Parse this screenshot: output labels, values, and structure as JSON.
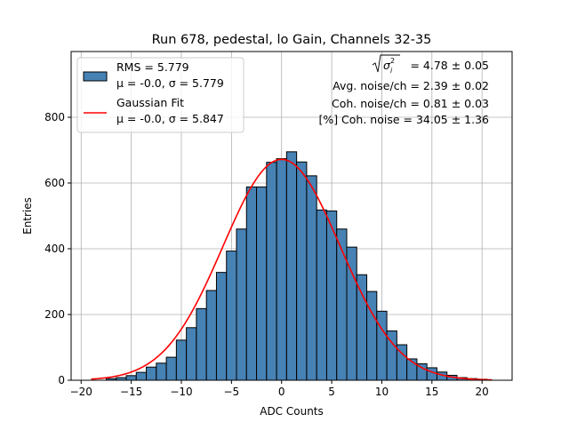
{
  "chart_data": {
    "type": "bar",
    "title": "Run 678, pedestal, lo Gain, Channels 32-35",
    "xlabel": "ADC Counts",
    "ylabel": "Entries",
    "xlim": [
      -21,
      23
    ],
    "ylim": [
      0,
      1000
    ],
    "x_ticks": [
      -20,
      -15,
      -10,
      -5,
      0,
      5,
      10,
      15,
      20
    ],
    "x_tick_labels": [
      "−20",
      "−15",
      "−10",
      "−5",
      "0",
      "5",
      "10",
      "15",
      "20"
    ],
    "y_ticks": [
      0,
      200,
      400,
      600,
      800
    ],
    "y_tick_labels": [
      "0",
      "200",
      "400",
      "600",
      "800"
    ],
    "grid": true,
    "legend_position": "top-left",
    "bin_width": 1,
    "bin_centers": [
      -17,
      -16,
      -15,
      -14,
      -13,
      -12,
      -11,
      -10,
      -9,
      -8,
      -7,
      -6,
      -5,
      -4,
      -3,
      -2,
      -1,
      0,
      1,
      2,
      3,
      4,
      5,
      6,
      7,
      8,
      9,
      10,
      11,
      12,
      13,
      14,
      15,
      16,
      17,
      18,
      19,
      20
    ],
    "counts": [
      5,
      8,
      14,
      24,
      40,
      52,
      70,
      122,
      160,
      218,
      273,
      328,
      393,
      460,
      588,
      588,
      663,
      674,
      695,
      664,
      622,
      518,
      515,
      460,
      405,
      321,
      270,
      210,
      150,
      108,
      65,
      50,
      38,
      25,
      15,
      8,
      5,
      3
    ],
    "series": [
      {
        "name": "RMS = 5.779",
        "kind": "histogram",
        "color": "#4682b4",
        "edge_color": "#000000"
      },
      {
        "name": "Gaussian Fit",
        "kind": "line",
        "color": "#ff0000",
        "mu": 0.0,
        "sigma": 5.847,
        "amplitude": 672,
        "x_range": [
          -19,
          21
        ]
      }
    ],
    "legend": [
      {
        "label": "RMS = 5.779",
        "sublabel": "μ = -0.0, σ = 5.779"
      },
      {
        "label": "Gaussian Fit",
        "sublabel": "μ = -0.0, σ = 5.847"
      }
    ],
    "annotations": {
      "sigma_sum": " = 4.78 ± 0.05",
      "avg_noise": "Avg. noise/ch = 2.39 ± 0.02",
      "coh_noise": "Coh. noise/ch = 0.81 ± 0.03",
      "pct_coh_noise": "[%] Coh. noise = 34.05 ± 1.36"
    }
  }
}
